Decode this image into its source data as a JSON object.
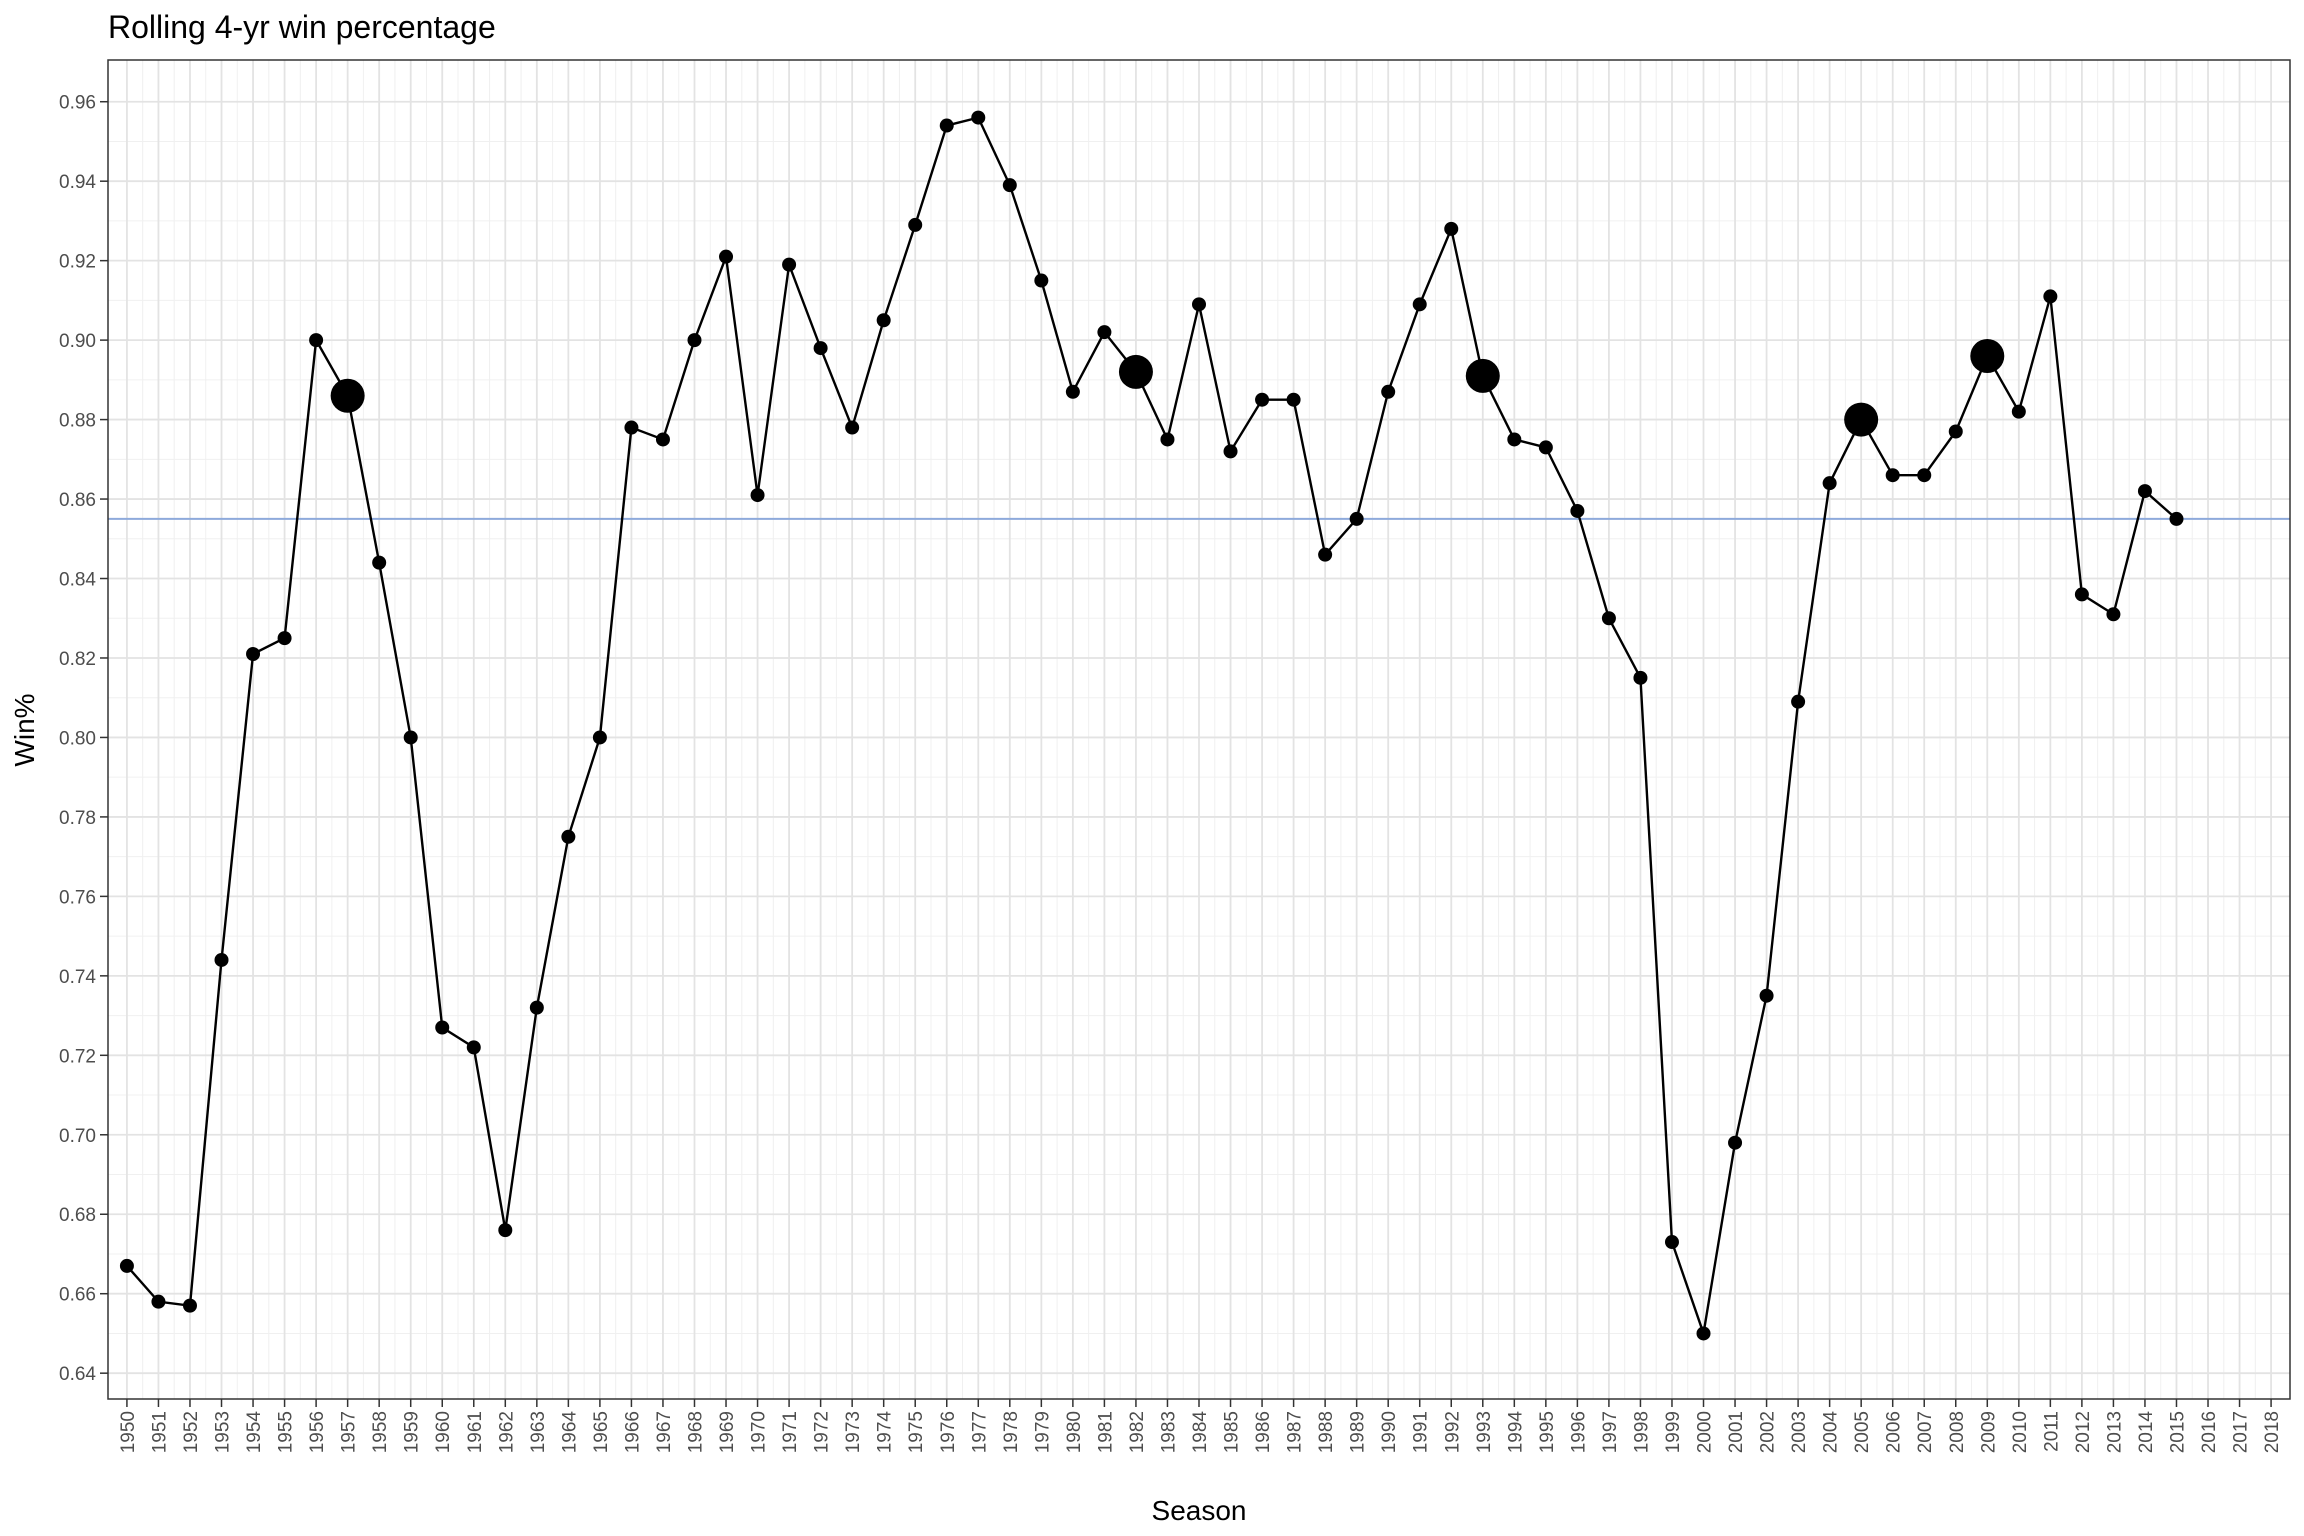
{
  "chart_data": {
    "type": "line",
    "title": "Rolling 4-yr win percentage",
    "xlabel": "Season",
    "ylabel": "Win%",
    "xlim": [
      1950,
      2018
    ],
    "ylim": [
      0.64,
      0.96
    ],
    "y_ticks": [
      "0.64",
      "0.66",
      "0.68",
      "0.70",
      "0.72",
      "0.74",
      "0.76",
      "0.78",
      "0.80",
      "0.82",
      "0.84",
      "0.86",
      "0.88",
      "0.90",
      "0.92",
      "0.94",
      "0.96"
    ],
    "x_ticks": [
      "1950",
      "1951",
      "1952",
      "1953",
      "1954",
      "1955",
      "1956",
      "1957",
      "1958",
      "1959",
      "1960",
      "1961",
      "1962",
      "1963",
      "1964",
      "1965",
      "1966",
      "1967",
      "1968",
      "1969",
      "1970",
      "1971",
      "1972",
      "1973",
      "1974",
      "1975",
      "1976",
      "1977",
      "1978",
      "1979",
      "1980",
      "1981",
      "1982",
      "1983",
      "1984",
      "1985",
      "1986",
      "1987",
      "1988",
      "1989",
      "1990",
      "1991",
      "1992",
      "1993",
      "1994",
      "1995",
      "1996",
      "1997",
      "1998",
      "1999",
      "2000",
      "2001",
      "2002",
      "2003",
      "2004",
      "2005",
      "2006",
      "2007",
      "2008",
      "2009",
      "2010",
      "2011",
      "2012",
      "2013",
      "2014",
      "2015",
      "2016",
      "2017",
      "2018"
    ],
    "reference_line": {
      "y": 0.855,
      "color": "#8eaadb"
    },
    "line_color": "#000000",
    "point_color": "#000000",
    "grid": true,
    "series": [
      {
        "x": [
          1950,
          1951,
          1952,
          1953,
          1954,
          1955,
          1956,
          1957,
          1958,
          1959,
          1960,
          1961,
          1962,
          1963,
          1964,
          1965,
          1966,
          1967,
          1968,
          1969,
          1970,
          1971,
          1972,
          1973,
          1974,
          1975,
          1976,
          1977,
          1978,
          1979,
          1980,
          1981,
          1982,
          1983,
          1984,
          1985,
          1986,
          1987,
          1988,
          1989,
          1990,
          1991,
          1992,
          1993,
          1994,
          1995,
          1996,
          1997,
          1998,
          1999,
          2000,
          2001,
          2002,
          2003,
          2004,
          2005,
          2006,
          2007,
          2008,
          2009,
          2010,
          2011,
          2012,
          2013,
          2014,
          2015
        ],
        "y": [
          0.667,
          0.658,
          0.657,
          0.744,
          0.821,
          0.825,
          0.9,
          0.886,
          0.844,
          0.8,
          0.727,
          0.722,
          0.676,
          0.732,
          0.775,
          0.8,
          0.878,
          0.875,
          0.9,
          0.921,
          0.861,
          0.919,
          0.898,
          0.878,
          0.905,
          0.929,
          0.954,
          0.956,
          0.939,
          0.915,
          0.887,
          0.902,
          0.892,
          0.875,
          0.909,
          0.872,
          0.885,
          0.885,
          0.846,
          0.855,
          0.887,
          0.909,
          0.928,
          0.891,
          0.875,
          0.873,
          0.857,
          0.83,
          0.815,
          0.673,
          0.65,
          0.698,
          0.735,
          0.809,
          0.864,
          0.88,
          0.866,
          0.866,
          0.877,
          0.896,
          0.882,
          0.911,
          0.836,
          0.831,
          0.862,
          0.855
        ],
        "highlighted": [
          1957,
          1982,
          1993,
          2005,
          2009
        ]
      }
    ]
  }
}
